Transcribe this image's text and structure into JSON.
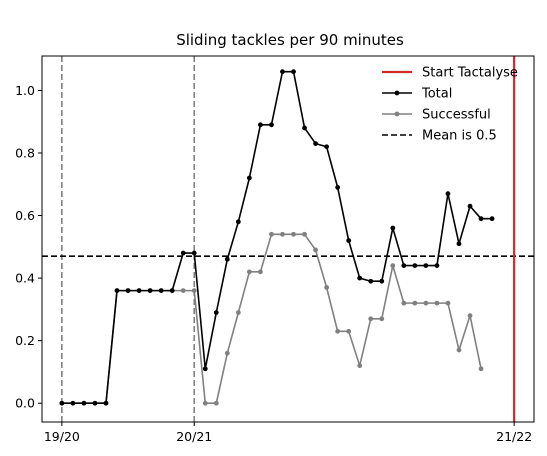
{
  "chart_data": {
    "type": "line",
    "title": "Sliding tackles per 90 minutes",
    "xlabel": "",
    "ylabel": "",
    "ylim": [
      -0.06,
      1.11
    ],
    "yticks": [
      0.0,
      0.2,
      0.4,
      0.6,
      0.8,
      1.0
    ],
    "ytick_labels": [
      "0.0",
      "0.2",
      "0.4",
      "0.6",
      "0.8",
      "1.0"
    ],
    "xlim": [
      -1.8,
      42.8
    ],
    "xticks": [
      0,
      12,
      41
    ],
    "xtick_labels": [
      "19/20",
      "20/21",
      "21/22"
    ],
    "season_lines": [
      0,
      12
    ],
    "start_tactalyse": 41,
    "mean_value": 0.47,
    "grid": false,
    "legend_position": "top-right",
    "legend": [
      {
        "label": "Start Tactalyse",
        "style": "solid-line",
        "color": "#d62728"
      },
      {
        "label": "Total",
        "style": "line-marker",
        "color": "#000000"
      },
      {
        "label": "Successful",
        "style": "line-marker",
        "color": "#808080"
      },
      {
        "label": "Mean is 0.5",
        "style": "dashed-line",
        "color": "#000000"
      }
    ],
    "series": [
      {
        "name": "Total",
        "color": "#000000",
        "x": [
          0,
          1,
          2,
          3,
          4,
          5,
          6,
          7,
          8,
          9,
          10,
          11,
          12,
          13,
          14,
          15,
          16,
          17,
          18,
          19,
          20,
          21,
          22,
          23,
          24,
          25,
          26,
          27,
          28,
          29,
          30,
          31,
          32,
          33,
          34,
          35,
          36,
          37,
          38,
          39
        ],
        "values": [
          0,
          0,
          0,
          0,
          0,
          0.36,
          0.36,
          0.36,
          0.36,
          0.36,
          0.36,
          0.48,
          0.48,
          0.11,
          0.29,
          0.46,
          0.58,
          0.72,
          0.89,
          0.89,
          1.06,
          1.06,
          0.88,
          0.83,
          0.82,
          0.69,
          0.52,
          0.4,
          0.39,
          0.39,
          0.56,
          0.44,
          0.44,
          0.44,
          0.44,
          0.67,
          0.51,
          0.63,
          0.59,
          0.59
        ]
      },
      {
        "name": "Successful",
        "color": "#808080",
        "x": [
          0,
          1,
          2,
          3,
          4,
          5,
          6,
          7,
          8,
          9,
          10,
          11,
          12,
          13,
          14,
          15,
          16,
          17,
          18,
          19,
          20,
          21,
          22,
          23,
          24,
          25,
          26,
          27,
          28,
          29,
          30,
          31,
          32,
          33,
          34,
          35,
          36,
          37,
          38
        ],
        "values": [
          0,
          0,
          0,
          0,
          0,
          0.36,
          0.36,
          0.36,
          0.36,
          0.36,
          0.36,
          0.36,
          0.36,
          0,
          0,
          0.16,
          0.29,
          0.42,
          0.42,
          0.54,
          0.54,
          0.54,
          0.54,
          0.49,
          0.37,
          0.23,
          0.23,
          0.12,
          0.27,
          0.27,
          0.44,
          0.32,
          0.32,
          0.32,
          0.32,
          0.32,
          0.17,
          0.28,
          0.11
        ]
      }
    ]
  }
}
